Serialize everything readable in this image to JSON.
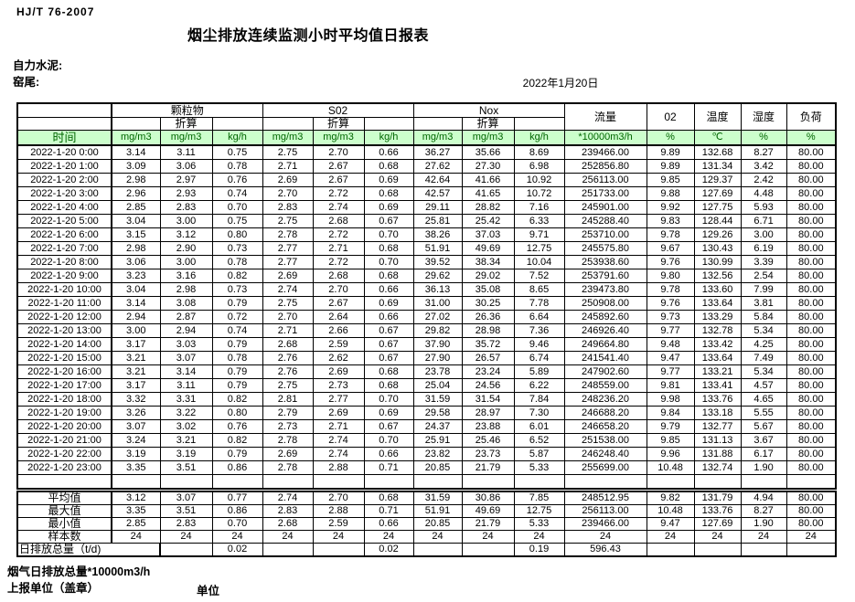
{
  "header": {
    "standard": "HJ/T 76-2007",
    "title": "烟尘排放连续监测小时平均值日报表",
    "company": "自力水泥:",
    "location": "窑尾:",
    "date": "2022年1月20日"
  },
  "table": {
    "time_label": "时间",
    "groups": {
      "pm": "颗粒物",
      "so2": "S02",
      "nox": "Nox",
      "flow": "流量",
      "o2": "02",
      "temp": "温度",
      "humidity": "湿度",
      "load": "负荷"
    },
    "converted_label": "折算",
    "units": [
      "mg/m3",
      "mg/m3",
      "kg/h",
      "mg/m3",
      "mg/m3",
      "kg/h",
      "mg/m3",
      "mg/m3",
      "kg/h",
      "*10000m3/h",
      "%",
      "℃",
      "%",
      "%"
    ],
    "rows": [
      {
        "time": "2022-1-20 0:00",
        "values": [
          "3.14",
          "3.11",
          "0.75",
          "2.75",
          "2.70",
          "0.66",
          "36.27",
          "35.66",
          "8.69",
          "239466.00",
          "9.89",
          "132.68",
          "8.27",
          "80.00"
        ]
      },
      {
        "time": "2022-1-20 1:00",
        "values": [
          "3.09",
          "3.06",
          "0.78",
          "2.71",
          "2.67",
          "0.68",
          "27.62",
          "27.30",
          "6.98",
          "252856.80",
          "9.89",
          "131.34",
          "3.42",
          "80.00"
        ]
      },
      {
        "time": "2022-1-20 2:00",
        "values": [
          "2.98",
          "2.97",
          "0.76",
          "2.69",
          "2.67",
          "0.69",
          "42.64",
          "41.66",
          "10.92",
          "256113.00",
          "9.85",
          "129.37",
          "2.42",
          "80.00"
        ]
      },
      {
        "time": "2022-1-20 3:00",
        "values": [
          "2.96",
          "2.93",
          "0.74",
          "2.70",
          "2.72",
          "0.68",
          "42.57",
          "41.65",
          "10.72",
          "251733.00",
          "9.88",
          "127.69",
          "4.48",
          "80.00"
        ]
      },
      {
        "time": "2022-1-20 4:00",
        "values": [
          "2.85",
          "2.83",
          "0.70",
          "2.83",
          "2.74",
          "0.69",
          "29.11",
          "28.82",
          "7.16",
          "245901.00",
          "9.92",
          "127.75",
          "5.93",
          "80.00"
        ]
      },
      {
        "time": "2022-1-20 5:00",
        "values": [
          "3.04",
          "3.00",
          "0.75",
          "2.75",
          "2.68",
          "0.67",
          "25.81",
          "25.42",
          "6.33",
          "245288.40",
          "9.83",
          "128.44",
          "6.71",
          "80.00"
        ]
      },
      {
        "time": "2022-1-20 6:00",
        "values": [
          "3.15",
          "3.12",
          "0.80",
          "2.78",
          "2.72",
          "0.70",
          "38.26",
          "37.03",
          "9.71",
          "253710.00",
          "9.78",
          "129.26",
          "3.00",
          "80.00"
        ]
      },
      {
        "time": "2022-1-20 7:00",
        "values": [
          "2.98",
          "2.90",
          "0.73",
          "2.77",
          "2.71",
          "0.68",
          "51.91",
          "49.69",
          "12.75",
          "245575.80",
          "9.67",
          "130.43",
          "6.19",
          "80.00"
        ]
      },
      {
        "time": "2022-1-20 8:00",
        "values": [
          "3.06",
          "3.00",
          "0.78",
          "2.77",
          "2.72",
          "0.70",
          "39.52",
          "38.34",
          "10.04",
          "253938.60",
          "9.76",
          "130.99",
          "3.39",
          "80.00"
        ]
      },
      {
        "time": "2022-1-20 9:00",
        "values": [
          "3.23",
          "3.16",
          "0.82",
          "2.69",
          "2.68",
          "0.68",
          "29.62",
          "29.02",
          "7.52",
          "253791.60",
          "9.80",
          "132.56",
          "2.54",
          "80.00"
        ]
      },
      {
        "time": "2022-1-20 10:00",
        "values": [
          "3.04",
          "2.98",
          "0.73",
          "2.74",
          "2.70",
          "0.66",
          "36.13",
          "35.08",
          "8.65",
          "239473.80",
          "9.78",
          "133.60",
          "7.99",
          "80.00"
        ]
      },
      {
        "time": "2022-1-20 11:00",
        "values": [
          "3.14",
          "3.08",
          "0.79",
          "2.75",
          "2.67",
          "0.69",
          "31.00",
          "30.25",
          "7.78",
          "250908.00",
          "9.76",
          "133.64",
          "3.81",
          "80.00"
        ]
      },
      {
        "time": "2022-1-20 12:00",
        "values": [
          "2.94",
          "2.87",
          "0.72",
          "2.70",
          "2.64",
          "0.66",
          "27.02",
          "26.36",
          "6.64",
          "245892.60",
          "9.73",
          "133.29",
          "5.84",
          "80.00"
        ]
      },
      {
        "time": "2022-1-20 13:00",
        "values": [
          "3.00",
          "2.94",
          "0.74",
          "2.71",
          "2.66",
          "0.67",
          "29.82",
          "28.98",
          "7.36",
          "246926.40",
          "9.77",
          "132.78",
          "5.34",
          "80.00"
        ]
      },
      {
        "time": "2022-1-20 14:00",
        "values": [
          "3.17",
          "3.03",
          "0.79",
          "2.68",
          "2.59",
          "0.67",
          "37.90",
          "35.72",
          "9.46",
          "249664.80",
          "9.48",
          "133.42",
          "4.25",
          "80.00"
        ]
      },
      {
        "time": "2022-1-20 15:00",
        "values": [
          "3.21",
          "3.07",
          "0.78",
          "2.76",
          "2.62",
          "0.67",
          "27.90",
          "26.57",
          "6.74",
          "241541.40",
          "9.47",
          "133.64",
          "7.49",
          "80.00"
        ]
      },
      {
        "time": "2022-1-20 16:00",
        "values": [
          "3.21",
          "3.14",
          "0.79",
          "2.76",
          "2.69",
          "0.68",
          "23.78",
          "23.24",
          "5.89",
          "247902.60",
          "9.77",
          "133.21",
          "5.34",
          "80.00"
        ]
      },
      {
        "time": "2022-1-20 17:00",
        "values": [
          "3.17",
          "3.11",
          "0.79",
          "2.75",
          "2.73",
          "0.68",
          "25.04",
          "24.56",
          "6.22",
          "248559.00",
          "9.81",
          "133.41",
          "4.57",
          "80.00"
        ]
      },
      {
        "time": "2022-1-20 18:00",
        "values": [
          "3.32",
          "3.31",
          "0.82",
          "2.81",
          "2.77",
          "0.70",
          "31.59",
          "31.54",
          "7.84",
          "248236.20",
          "9.98",
          "133.76",
          "4.65",
          "80.00"
        ]
      },
      {
        "time": "2022-1-20 19:00",
        "values": [
          "3.26",
          "3.22",
          "0.80",
          "2.79",
          "2.69",
          "0.69",
          "29.58",
          "28.97",
          "7.30",
          "246688.20",
          "9.84",
          "133.18",
          "5.55",
          "80.00"
        ]
      },
      {
        "time": "2022-1-20 20:00",
        "values": [
          "3.07",
          "3.02",
          "0.76",
          "2.73",
          "2.71",
          "0.67",
          "24.37",
          "23.88",
          "6.01",
          "246658.20",
          "9.79",
          "132.77",
          "5.67",
          "80.00"
        ]
      },
      {
        "time": "2022-1-20 21:00",
        "values": [
          "3.24",
          "3.21",
          "0.82",
          "2.78",
          "2.74",
          "0.70",
          "25.91",
          "25.46",
          "6.52",
          "251538.00",
          "9.85",
          "131.13",
          "3.67",
          "80.00"
        ]
      },
      {
        "time": "2022-1-20 22:00",
        "values": [
          "3.19",
          "3.19",
          "0.79",
          "2.69",
          "2.74",
          "0.66",
          "23.82",
          "23.73",
          "5.87",
          "246248.40",
          "9.96",
          "131.88",
          "6.17",
          "80.00"
        ]
      },
      {
        "time": "2022-1-20 23:00",
        "values": [
          "3.35",
          "3.51",
          "0.86",
          "2.78",
          "2.88",
          "0.71",
          "20.85",
          "21.79",
          "5.33",
          "255699.00",
          "10.48",
          "132.74",
          "1.90",
          "80.00"
        ]
      }
    ]
  },
  "summary": {
    "rows": [
      {
        "label": "平均值",
        "values": [
          "3.12",
          "3.07",
          "0.77",
          "2.74",
          "2.70",
          "0.68",
          "31.59",
          "30.86",
          "7.85",
          "248512.95",
          "9.82",
          "131.79",
          "4.94",
          "80.00"
        ]
      },
      {
        "label": "最大值",
        "values": [
          "3.35",
          "3.51",
          "0.86",
          "2.83",
          "2.88",
          "0.71",
          "51.91",
          "49.69",
          "12.75",
          "256113.00",
          "10.48",
          "133.76",
          "8.27",
          "80.00"
        ]
      },
      {
        "label": "最小值",
        "values": [
          "2.85",
          "2.83",
          "0.70",
          "2.68",
          "2.59",
          "0.66",
          "20.85",
          "21.79",
          "5.33",
          "239466.00",
          "9.47",
          "127.69",
          "1.90",
          "80.00"
        ]
      },
      {
        "label": "样本数",
        "values": [
          "24",
          "24",
          "24",
          "24",
          "24",
          "24",
          "24",
          "24",
          "24",
          "24",
          "24",
          "24",
          "24",
          "24"
        ]
      }
    ],
    "total": {
      "label": "日排放总量（t/d)",
      "values": [
        "",
        "0.02",
        "",
        "",
        "0.02",
        "",
        "",
        "0.19",
        "596.43",
        "",
        "",
        "",
        ""
      ]
    }
  },
  "footer": {
    "gas_total_label": "烟气日排放总量*10000m3/h",
    "report_unit_label": "上报单位（盖章）",
    "unit_label": "单位"
  },
  "colors": {
    "header_green_bg": "#ccffcc",
    "header_green_text": "#006400",
    "border": "#000000"
  }
}
